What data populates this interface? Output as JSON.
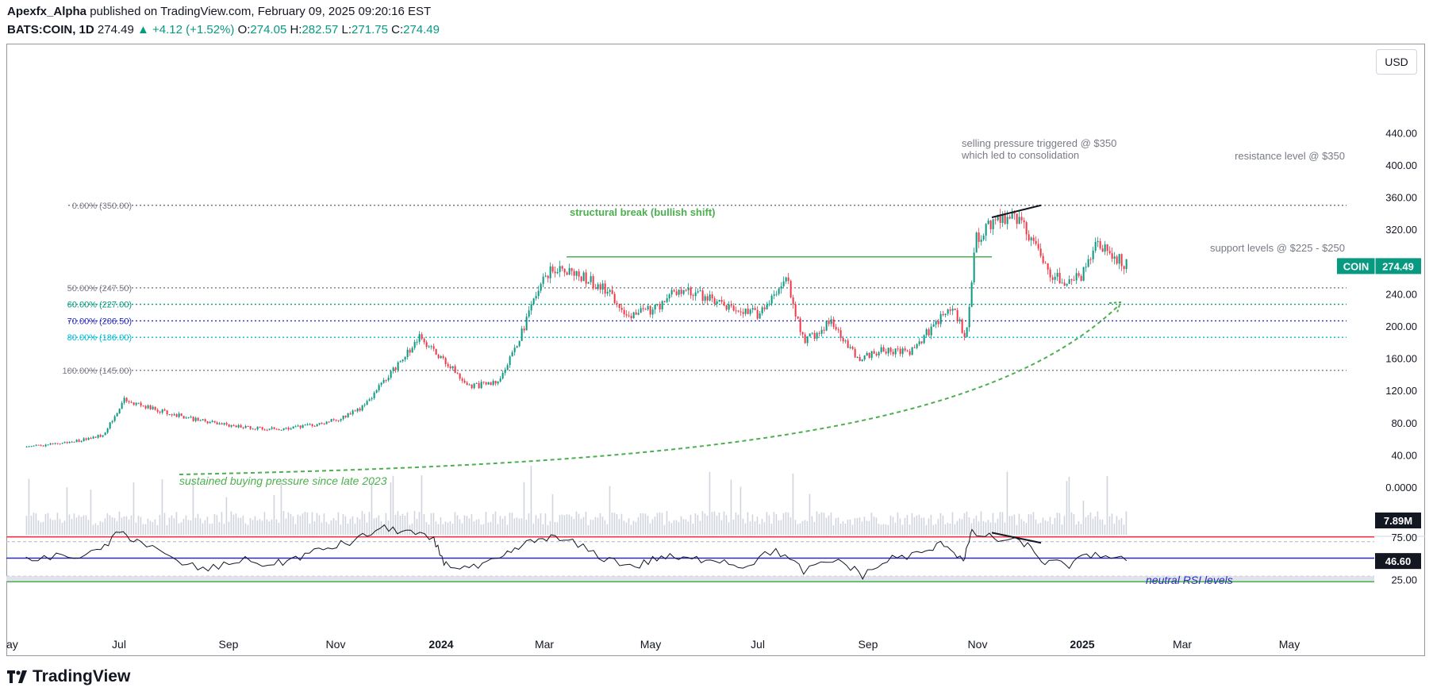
{
  "header": {
    "author": "Apexfx_Alpha",
    "published": "published on TradingView.com, February 09, 2025 09:20:16 EST",
    "symbol": "BATS:COIN, 1D",
    "last": "274.49",
    "change": "▲ +4.12 (+1.52%)",
    "o_label": "O:",
    "o": "274.05",
    "h_label": "H:",
    "h": "282.57",
    "l_label": "L:",
    "l": "271.75",
    "c_label": "C:",
    "c": "274.49"
  },
  "currency_button": "USD",
  "branding": "TradingView",
  "chart_data": {
    "type": "candlestick",
    "symbol": "COIN",
    "price_axis": {
      "ticks": [
        "440.00",
        "400.00",
        "360.00",
        "320.00",
        "280.00",
        "240.00",
        "200.00",
        "160.00",
        "120.00",
        "80.00",
        "40.00",
        "0.0000"
      ],
      "tick_values": [
        440,
        400,
        360,
        320,
        280,
        240,
        200,
        160,
        120,
        80,
        40,
        0
      ]
    },
    "time_axis": [
      "ay",
      "Jul",
      "Sep",
      "Nov",
      "2024",
      "Mar",
      "May",
      "Jul",
      "Sep",
      "Nov",
      "2025",
      "Mar",
      "May"
    ],
    "bold_time_labels": [
      "2024",
      "2025"
    ],
    "price_points": [
      {
        "t": "2023-05-15",
        "p": 50
      },
      {
        "t": "2023-06-10",
        "p": 56
      },
      {
        "t": "2023-06-28",
        "p": 65
      },
      {
        "t": "2023-07-10",
        "p": 108
      },
      {
        "t": "2023-07-25",
        "p": 98
      },
      {
        "t": "2023-08-20",
        "p": 84
      },
      {
        "t": "2023-09-10",
        "p": 76
      },
      {
        "t": "2023-10-05",
        "p": 72
      },
      {
        "t": "2023-10-25",
        "p": 76
      },
      {
        "t": "2023-11-10",
        "p": 84
      },
      {
        "t": "2023-11-25",
        "p": 100
      },
      {
        "t": "2023-12-10",
        "p": 140
      },
      {
        "t": "2023-12-27",
        "p": 185
      },
      {
        "t": "2024-01-10",
        "p": 158
      },
      {
        "t": "2024-01-25",
        "p": 125
      },
      {
        "t": "2024-02-10",
        "p": 130
      },
      {
        "t": "2024-02-25",
        "p": 195
      },
      {
        "t": "2024-03-05",
        "p": 250
      },
      {
        "t": "2024-03-15",
        "p": 275
      },
      {
        "t": "2024-03-25",
        "p": 265
      },
      {
        "t": "2024-04-10",
        "p": 250
      },
      {
        "t": "2024-04-25",
        "p": 215
      },
      {
        "t": "2024-05-10",
        "p": 220
      },
      {
        "t": "2024-05-25",
        "p": 248
      },
      {
        "t": "2024-06-10",
        "p": 235
      },
      {
        "t": "2024-06-25",
        "p": 220
      },
      {
        "t": "2024-07-10",
        "p": 215
      },
      {
        "t": "2024-07-25",
        "p": 262
      },
      {
        "t": "2024-08-05",
        "p": 180
      },
      {
        "t": "2024-08-20",
        "p": 205
      },
      {
        "t": "2024-09-05",
        "p": 160
      },
      {
        "t": "2024-09-20",
        "p": 170
      },
      {
        "t": "2024-10-05",
        "p": 168
      },
      {
        "t": "2024-10-20",
        "p": 205
      },
      {
        "t": "2024-10-30",
        "p": 220
      },
      {
        "t": "2024-11-06",
        "p": 185
      },
      {
        "t": "2024-11-12",
        "p": 310
      },
      {
        "t": "2024-11-20",
        "p": 325
      },
      {
        "t": "2024-12-05",
        "p": 335
      },
      {
        "t": "2024-12-15",
        "p": 305
      },
      {
        "t": "2024-12-25",
        "p": 265
      },
      {
        "t": "2025-01-05",
        "p": 255
      },
      {
        "t": "2025-01-12",
        "p": 262
      },
      {
        "t": "2025-01-20",
        "p": 298
      },
      {
        "t": "2025-01-30",
        "p": 290
      },
      {
        "t": "2025-02-07",
        "p": 274
      }
    ],
    "fib_levels": [
      {
        "label": "0.00% (350.00)",
        "price": 350,
        "color": "#787b86"
      },
      {
        "label": "50.00% (247.50)",
        "price": 247.5,
        "color": "#787b86"
      },
      {
        "label": "60.00% (227.00)",
        "price": 227,
        "color": "#089981"
      },
      {
        "label": "70.00% (206.50)",
        "price": 206.5,
        "color": "#2a2ebd"
      },
      {
        "label": "80.00% (186.00)",
        "price": 186,
        "color": "#00bcd4"
      },
      {
        "label": "100.00% (145.00)",
        "price": 145,
        "color": "#787b86"
      }
    ],
    "annotations": {
      "structural_break": "structural break (bullish shift)",
      "selling_pressure_1": "selling pressure triggered @ $350",
      "selling_pressure_2": "which led to consolidation",
      "resistance": "resistance level @ $350",
      "support": "support levels @ $225 - $250",
      "buying_pressure": "sustained buying pressure since late 2023",
      "neutral_rsi": "neutral RSI levels"
    },
    "last_price": {
      "symbol": "COIN",
      "value": "274.49",
      "color": "#089981"
    },
    "volume_label": "7.89M",
    "rsi": {
      "ticks": [
        "75.00",
        "25.00"
      ],
      "tick_values": [
        75,
        25
      ],
      "upper": 75,
      "middle": 50,
      "lower": 25,
      "current_label": "46.60",
      "points": [
        {
          "t": "2023-05-15",
          "v": 48
        },
        {
          "t": "2023-06-05",
          "v": 52
        },
        {
          "t": "2023-06-25",
          "v": 56
        },
        {
          "t": "2023-07-08",
          "v": 80
        },
        {
          "t": "2023-07-20",
          "v": 70
        },
        {
          "t": "2023-08-10",
          "v": 45
        },
        {
          "t": "2023-08-28",
          "v": 36
        },
        {
          "t": "2023-09-15",
          "v": 48
        },
        {
          "t": "2023-10-05",
          "v": 42
        },
        {
          "t": "2023-10-20",
          "v": 52
        },
        {
          "t": "2023-11-05",
          "v": 62
        },
        {
          "t": "2023-11-20",
          "v": 70
        },
        {
          "t": "2023-12-05",
          "v": 85
        },
        {
          "t": "2023-12-20",
          "v": 82
        },
        {
          "t": "2024-01-05",
          "v": 70
        },
        {
          "t": "2024-01-12",
          "v": 42
        },
        {
          "t": "2024-01-28",
          "v": 38
        },
        {
          "t": "2024-02-12",
          "v": 48
        },
        {
          "t": "2024-02-25",
          "v": 65
        },
        {
          "t": "2024-03-10",
          "v": 75
        },
        {
          "t": "2024-03-25",
          "v": 68
        },
        {
          "t": "2024-04-12",
          "v": 50
        },
        {
          "t": "2024-04-30",
          "v": 40
        },
        {
          "t": "2024-05-15",
          "v": 52
        },
        {
          "t": "2024-05-30",
          "v": 48
        },
        {
          "t": "2024-06-15",
          "v": 50
        },
        {
          "t": "2024-07-01",
          "v": 40
        },
        {
          "t": "2024-07-20",
          "v": 60
        },
        {
          "t": "2024-08-05",
          "v": 35
        },
        {
          "t": "2024-08-25",
          "v": 48
        },
        {
          "t": "2024-09-08",
          "v": 30
        },
        {
          "t": "2024-09-25",
          "v": 50
        },
        {
          "t": "2024-10-12",
          "v": 55
        },
        {
          "t": "2024-10-25",
          "v": 68
        },
        {
          "t": "2024-11-05",
          "v": 48
        },
        {
          "t": "2024-11-10",
          "v": 80
        },
        {
          "t": "2024-11-25",
          "v": 72
        },
        {
          "t": "2024-12-10",
          "v": 68
        },
        {
          "t": "2024-12-22",
          "v": 45
        },
        {
          "t": "2025-01-05",
          "v": 42
        },
        {
          "t": "2025-01-20",
          "v": 56
        },
        {
          "t": "2025-02-07",
          "v": 47
        }
      ]
    }
  }
}
